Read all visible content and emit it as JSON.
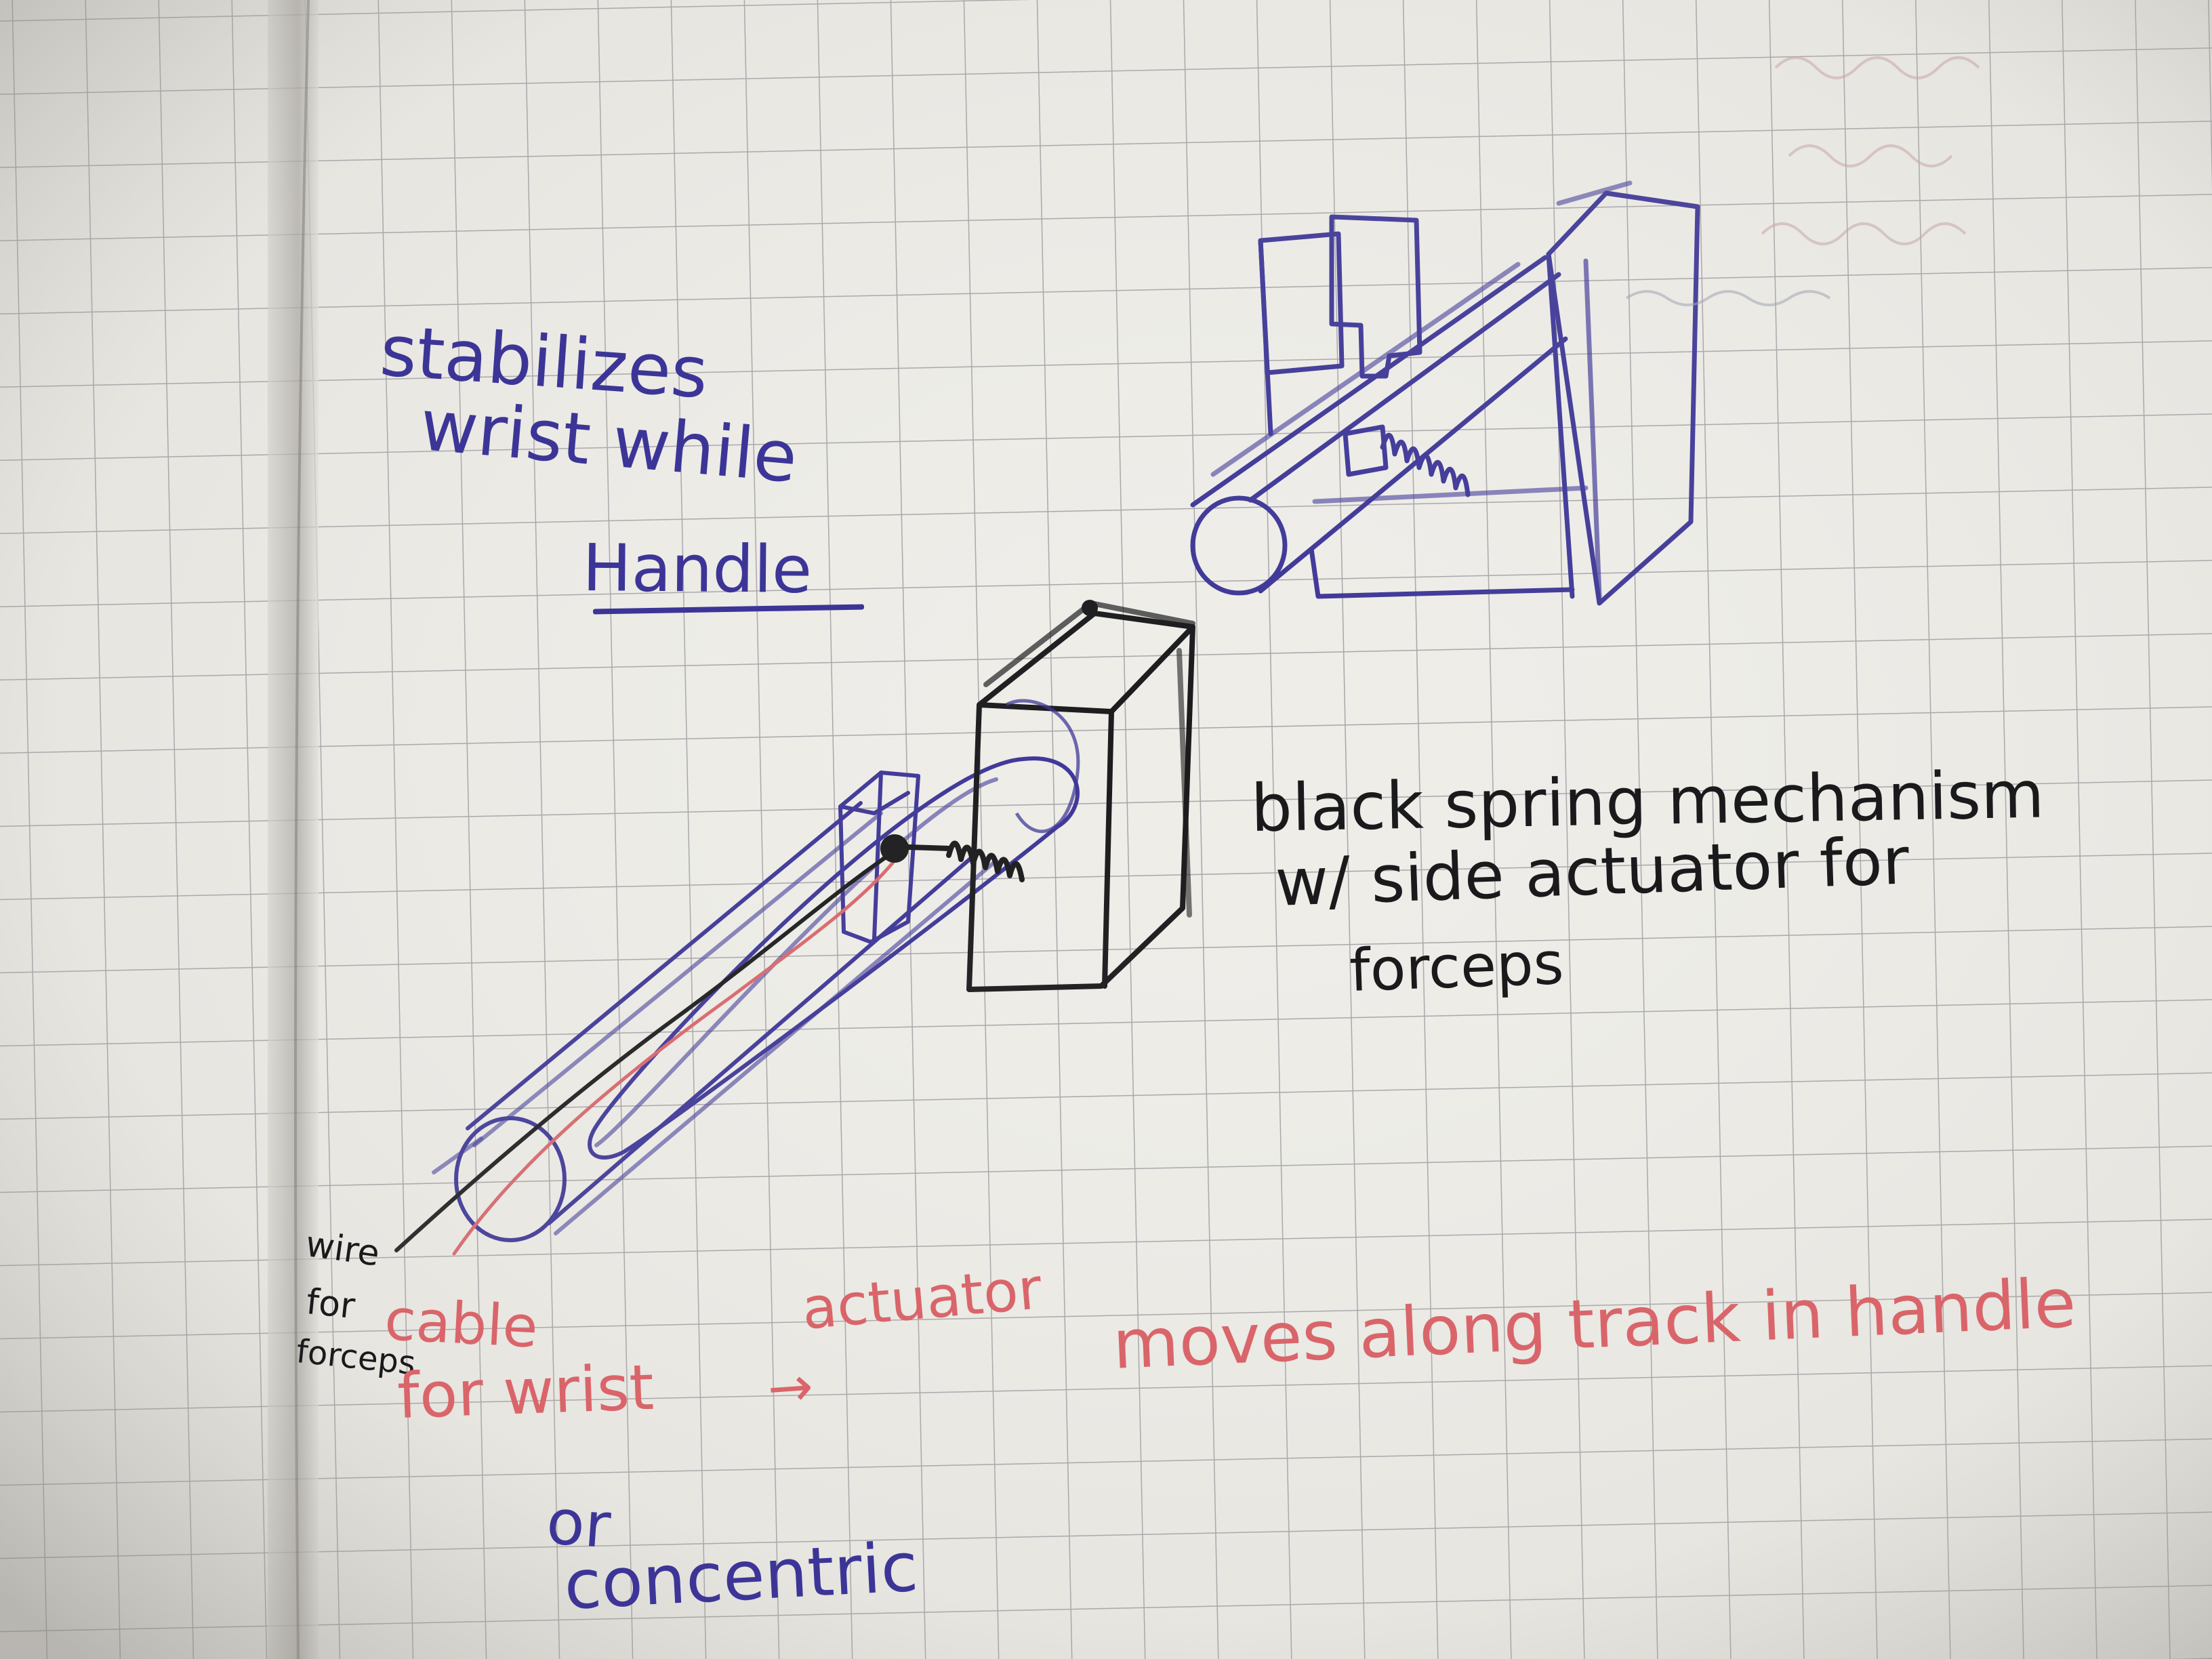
{
  "notes": {
    "stabilizes": "stabilizes",
    "wrist_while": "wrist while",
    "handle": "Handle",
    "black_spring": "black spring mechanism",
    "side_actuator": "w/ side actuator for",
    "forceps_1": "forceps",
    "wire": "wire",
    "for_1": "for",
    "forceps_2": "forceps",
    "cable": "cable",
    "for_wrist": "for wrist",
    "actuator": "actuator",
    "arrow": "→",
    "moves_along": "moves along track in handle",
    "or": "or",
    "concentric": "concentric"
  },
  "colors": {
    "paper": "#eeede8",
    "grid": "#8f8c93",
    "blue_ink": "#3c3597",
    "black_ink": "#1a1a1c",
    "red_ink": "#d9656a"
  }
}
